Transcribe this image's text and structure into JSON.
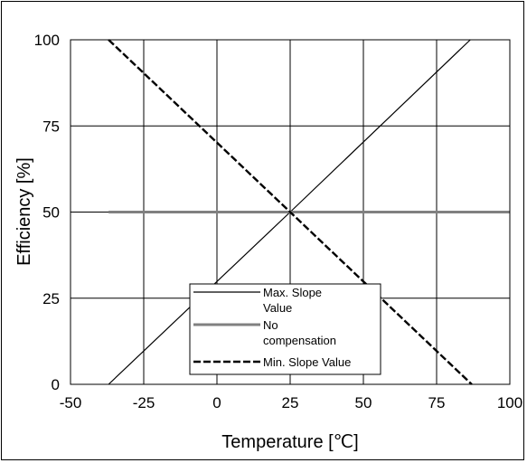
{
  "chart_data": {
    "type": "line",
    "xlabel": "Temperature [℃]",
    "ylabel": "Efficiency [%]",
    "xlim": [
      -50,
      100
    ],
    "ylim": [
      0,
      100
    ],
    "xticks": [
      -50,
      -25,
      0,
      25,
      50,
      75,
      100
    ],
    "yticks": [
      0,
      25,
      50,
      75,
      100
    ],
    "grid": true,
    "legend_position": "bottom-center",
    "series": [
      {
        "name": "Max. Slope Value",
        "x": [
          -37,
          25,
          86.5
        ],
        "y": [
          0,
          50,
          100
        ],
        "color": "#000000",
        "style": "solid"
      },
      {
        "name": "No compensation",
        "x": [
          -37,
          100
        ],
        "y": [
          50,
          50
        ],
        "color": "#808080",
        "style": "solid"
      },
      {
        "name": "Min. Slope Value",
        "x": [
          -37,
          25,
          87
        ],
        "y": [
          100,
          50,
          0
        ],
        "color": "#000000",
        "style": "dashed"
      }
    ],
    "legend_lines": [
      [
        "Max. Slope",
        "Value"
      ],
      [
        "No",
        "compensation"
      ],
      [
        "Min. Slope Value"
      ]
    ]
  }
}
